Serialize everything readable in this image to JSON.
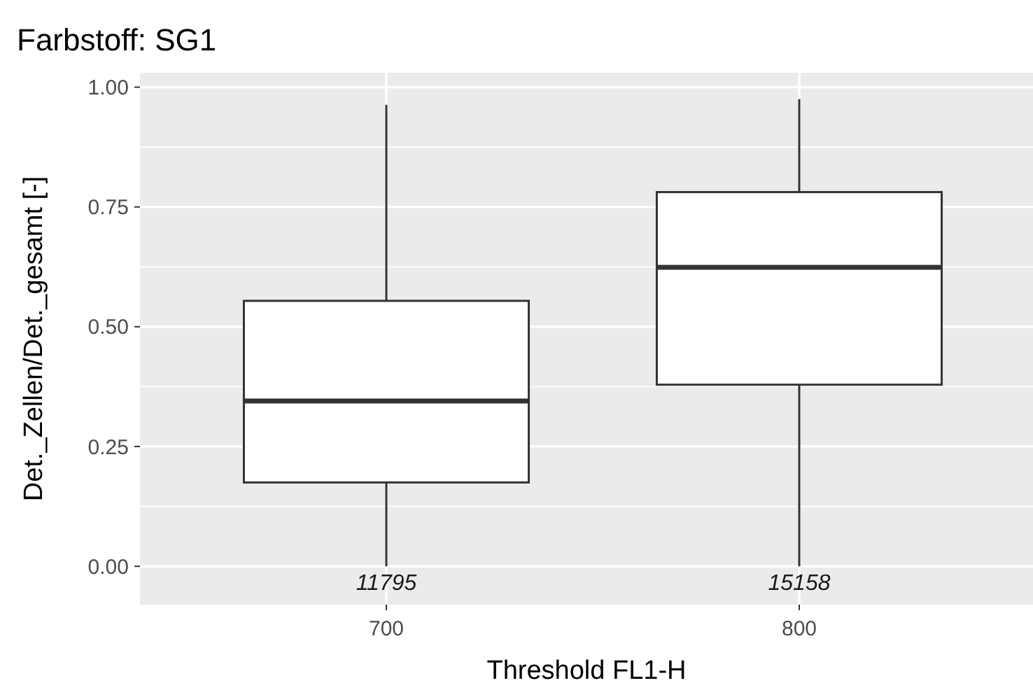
{
  "chart_data": {
    "type": "box",
    "title": "Farbstoff: SG1",
    "xlabel": "Threshold FL1-H",
    "ylabel": "Det._Zellen/Det._gesamt [-]",
    "categories": [
      "700",
      "800"
    ],
    "boxes": [
      {
        "low": 0,
        "q1": 0.175,
        "median": 0.345,
        "q3": 0.554,
        "high": 0.963
      },
      {
        "low": 0,
        "q1": 0.379,
        "median": 0.624,
        "q3": 0.781,
        "high": 0.975
      }
    ],
    "ylim": [
      -0.08,
      1.03
    ],
    "yticks": [
      {
        "value": 0,
        "label": "0.00"
      },
      {
        "value": 0.25,
        "label": "0.25"
      },
      {
        "value": 0.5,
        "label": "0.50"
      },
      {
        "value": 0.75,
        "label": "0.75"
      },
      {
        "value": 1,
        "label": "1.00"
      }
    ],
    "grid": true,
    "annotations": [
      {
        "text": "11795",
        "x": "700",
        "y": 0
      },
      {
        "text": "15158",
        "x": "800",
        "y": 0
      }
    ]
  }
}
